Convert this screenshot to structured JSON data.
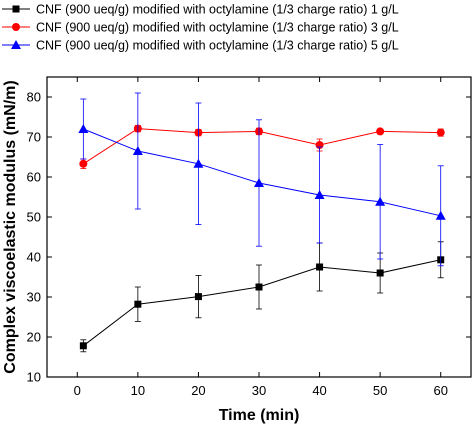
{
  "chart_data": {
    "type": "line",
    "title": "",
    "xlabel": "Time (min)",
    "ylabel": "Complex viscoelastic modulus (mN/m)",
    "xlim": [
      -5,
      65
    ],
    "ylim": [
      10,
      85
    ],
    "xticks": [
      0,
      10,
      20,
      30,
      40,
      50,
      60
    ],
    "yticks": [
      10,
      20,
      30,
      40,
      50,
      60,
      70,
      80
    ],
    "grid": false,
    "legend_position": "top",
    "series": [
      {
        "name": "CNF (900 ueq/g) modified with octylamine (1/3 charge ratio) 1 g/L",
        "color": "#000000",
        "marker": "square",
        "x": [
          1,
          10,
          20,
          30,
          40,
          50,
          60
        ],
        "y": [
          17.8,
          28.2,
          30.1,
          32.5,
          37.5,
          36.0,
          39.3
        ],
        "err": [
          1.5,
          4.3,
          5.3,
          5.5,
          6.0,
          5.0,
          4.5
        ]
      },
      {
        "name": "CNF (900 ueq/g) modified with octylamine (1/3 charge ratio) 3 g/L",
        "color": "#ff0000",
        "marker": "circle",
        "x": [
          1,
          10,
          20,
          30,
          40,
          50,
          60
        ],
        "y": [
          63.3,
          72.1,
          71.1,
          71.4,
          68.0,
          71.4,
          71.1
        ],
        "err": [
          1.2,
          0.8,
          0.8,
          0.8,
          1.5,
          0.6,
          0.9
        ]
      },
      {
        "name": "CNF (900 ueq/g) modified with octylamine (1/3 charge ratio) 5 g/L",
        "color": "#0000ff",
        "marker": "triangle",
        "x": [
          1,
          10,
          20,
          30,
          40,
          50,
          60
        ],
        "y": [
          72.0,
          66.5,
          63.3,
          58.5,
          55.5,
          53.8,
          50.3
        ],
        "err": [
          7.5,
          14.5,
          15.2,
          15.8,
          12.0,
          14.3,
          12.5
        ]
      }
    ]
  }
}
